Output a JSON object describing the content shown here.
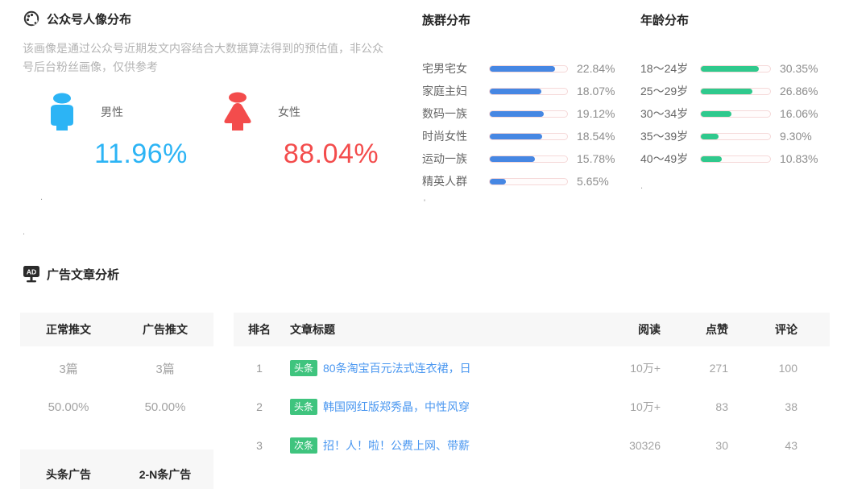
{
  "portrait": {
    "title": "公众号人像分布",
    "description": "该画像是通过公众号近期发文内容结合大数据算法得到的预估值，非公众号后台粉丝画像，仅供参考",
    "male": {
      "label": "男性",
      "value": "11.96%",
      "color": "#2cb4f5"
    },
    "female": {
      "label": "女性",
      "value": "88.04%",
      "color": "#f34c4c"
    }
  },
  "chart_data": [
    {
      "type": "bar",
      "title": "族群分布",
      "orientation": "horizontal",
      "categories": [
        "宅男宅女",
        "家庭主妇",
        "数码一族",
        "时尚女性",
        "运动一族",
        "精英人群"
      ],
      "values": [
        22.84,
        18.07,
        19.12,
        18.54,
        15.78,
        5.65
      ],
      "value_labels": [
        "22.84%",
        "18.07%",
        "19.12%",
        "18.54%",
        "15.78%",
        "5.65%"
      ],
      "bar_color": "#4687e3",
      "track_border": "#f5d8d8",
      "xlim": [
        0,
        27.2
      ],
      "grid": false,
      "legend": "none"
    },
    {
      "type": "bar",
      "title": "年龄分布",
      "orientation": "horizontal",
      "categories": [
        "18～24岁",
        "25～29岁",
        "30～34岁",
        "35～39岁",
        "40～49岁"
      ],
      "values": [
        30.35,
        26.86,
        16.06,
        9.3,
        10.83
      ],
      "value_labels": [
        "30.35%",
        "26.86%",
        "16.06%",
        "9.30%",
        "10.83%"
      ],
      "bar_color": "#2fc98d",
      "track_border": "#f5d8d8",
      "xlim": [
        0,
        36.1
      ],
      "grid": false,
      "legend": "none"
    }
  ],
  "ad_analysis": {
    "title": "广告文章分析",
    "stats": {
      "headers": [
        "正常推文",
        "广告推文"
      ],
      "rows": [
        [
          "3篇",
          "3篇"
        ],
        [
          "50.00%",
          "50.00%"
        ]
      ],
      "footer_headers": [
        "头条广告",
        "2-N条广告"
      ]
    },
    "table": {
      "headers": [
        "排名",
        "文章标题",
        "阅读",
        "点赞",
        "评论"
      ],
      "rows": [
        {
          "rank": "1",
          "badge": "头条",
          "title": "80条淘宝百元法式连衣裙，日",
          "reads": "10万+",
          "likes": "271",
          "comments": "100"
        },
        {
          "rank": "2",
          "badge": "头条",
          "title": "韩国网红版郑秀晶，中性风穿",
          "reads": "10万+",
          "likes": "83",
          "comments": "38"
        },
        {
          "rank": "3",
          "badge": "次条",
          "title": "招！人！啦！公费上网、带薪",
          "reads": "30326",
          "likes": "30",
          "comments": "43"
        }
      ]
    }
  },
  "stray_marks": [
    ".",
    ".",
    "'",
    "."
  ]
}
